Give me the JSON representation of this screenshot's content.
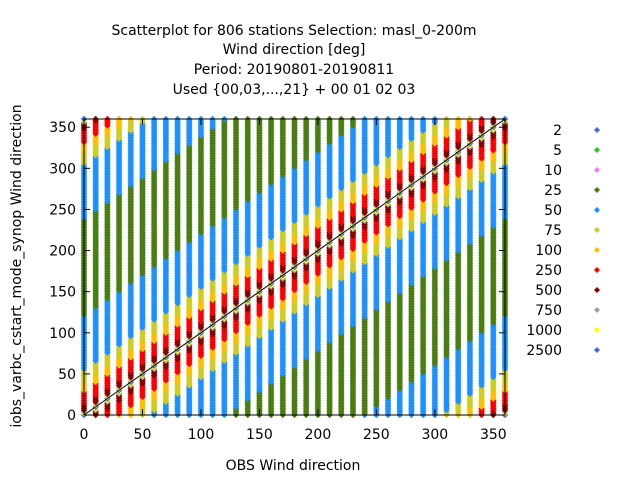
{
  "chart_data": {
    "type": "scatter",
    "title_lines": [
      "Scatterplot for  806 stations Selection: masl_0-200m",
      "Wind direction [deg]",
      "Period: 20190801-20190811",
      "Used {00,03,...,21} + 00 01 02 03"
    ],
    "xlabel": "OBS Wind direction",
    "ylabel": "iobs_varbc_cstart_mode_synop Wind direction",
    "xlim": [
      0,
      360
    ],
    "ylim": [
      0,
      360
    ],
    "xticks": [
      0,
      50,
      100,
      150,
      200,
      250,
      300,
      350
    ],
    "yticks": [
      0,
      50,
      100,
      150,
      200,
      250,
      300,
      350
    ],
    "grid": false,
    "diagonal": true,
    "legend_position": "right",
    "x_columns": [
      0,
      10,
      20,
      30,
      40,
      50,
      60,
      70,
      80,
      90,
      100,
      110,
      120,
      130,
      140,
      150,
      160,
      170,
      180,
      190,
      200,
      210,
      220,
      230,
      240,
      250,
      260,
      270,
      280,
      290,
      300,
      310,
      320,
      330,
      340,
      350,
      360
    ],
    "series": [
      {
        "name": "2",
        "color": "#4169e1",
        "max_offset": 360
      },
      {
        "name": "5",
        "color": "#22cc22",
        "max_offset": 360
      },
      {
        "name": "10",
        "color": "#ee82ee",
        "max_offset": 360
      },
      {
        "name": "25",
        "color": "#4a7d12",
        "max_offset": 360
      },
      {
        "name": "50",
        "color": "#1e90ff",
        "max_offset": 120
      },
      {
        "name": "75",
        "color": "#cccc22",
        "max_offset": 55
      },
      {
        "name": "100",
        "color": "#ffbf00",
        "max_offset": 40
      },
      {
        "name": "250",
        "color": "#ff0000",
        "max_offset": 28
      },
      {
        "name": "500",
        "color": "#8b0000",
        "max_offset": 12
      },
      {
        "name": "750",
        "color": "#a0a0a0",
        "max_offset": 5
      },
      {
        "name": "1000",
        "color": "#ffff00",
        "max_offset": 2
      },
      {
        "name": "2500",
        "color": "#4169e1",
        "max_offset": 0
      }
    ]
  }
}
